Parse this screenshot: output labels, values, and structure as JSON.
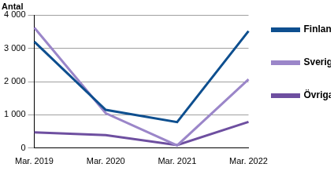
{
  "chart_data": {
    "type": "line",
    "ylabel": "Antal",
    "categories": [
      "Mar. 2019",
      "Mar. 2020",
      "Mar. 2021",
      "Mar. 2022"
    ],
    "series": [
      {
        "name": "Finland",
        "color": "#0e4f8f",
        "values": [
          3200,
          1150,
          780,
          3520
        ]
      },
      {
        "name": "Sverige",
        "color": "#9b86c9",
        "values": [
          3620,
          1050,
          80,
          2070
        ]
      },
      {
        "name": "Övriga",
        "color": "#6e4fa0",
        "values": [
          470,
          390,
          90,
          790
        ]
      }
    ],
    "ylim": [
      0,
      4000
    ],
    "yticks": [
      0,
      {
        "value": 1000,
        "label": "1 000"
      },
      {
        "value": 2000,
        "label": "2 000"
      },
      {
        "value": 3000,
        "label": "3 000"
      },
      {
        "value": 4000,
        "label": "4 000"
      }
    ],
    "grid": true,
    "legend": "right"
  }
}
